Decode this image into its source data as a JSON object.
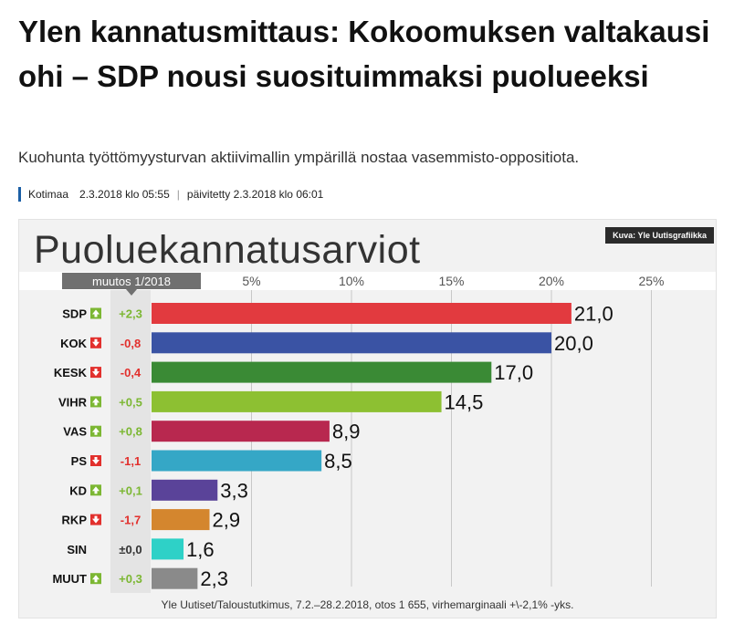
{
  "article": {
    "headline": "Ylen kannatusmittaus: Kokoomuksen valtakausi ohi – SDP nousi suosituimmaksi puolueeksi",
    "lead": "Kuohunta työttömyysturvan aktiivimallin ympärillä nostaa vasemmisto-oppositiota.",
    "section": "Kotimaa",
    "published": "2.3.2018 klo 05:55",
    "updated": "päivitetty 2.3.2018 klo 06:01"
  },
  "graphic": {
    "title": "Puoluekannatusarviot",
    "credit": "Kuva: Yle Uutisgrafiikka",
    "change_header": "muutos 1/2018",
    "footnote": "Yle Uutiset/Taloustutkimus, 7.2.–28.2.2018, otos 1 655, virhemarginaali +\\-2,1% -yks."
  },
  "chart_data": {
    "type": "bar",
    "orientation": "horizontal",
    "title": "Puoluekannatusarviot",
    "xlim": [
      0,
      25
    ],
    "ticks": [
      "5%",
      "10%",
      "15%",
      "20%",
      "25%"
    ],
    "tick_values": [
      5,
      10,
      15,
      20,
      25
    ],
    "grid": true,
    "categories": [
      "SDP",
      "KOK",
      "KESK",
      "VIHR",
      "VAS",
      "PS",
      "KD",
      "RKP",
      "SIN",
      "MUUT"
    ],
    "values": [
      21.0,
      20.0,
      17.0,
      14.5,
      8.9,
      8.5,
      3.3,
      2.9,
      1.6,
      2.3
    ],
    "value_labels": [
      "21,0",
      "20,0",
      "17,0",
      "14,5",
      "8,9",
      "8,5",
      "3,3",
      "2,9",
      "1,6",
      "2,3"
    ],
    "changes": [
      "+2,3",
      "-0,8",
      "-0,4",
      "+0,5",
      "+0,8",
      "-1,1",
      "+0,1",
      "-1,7",
      "±0,0",
      "+0,3"
    ],
    "change_direction": [
      "up",
      "down",
      "down",
      "up",
      "up",
      "down",
      "up",
      "down",
      "none",
      "up"
    ],
    "bar_colors": [
      "#e23a3f",
      "#3a53a4",
      "#3a8a35",
      "#8dc032",
      "#b8284f",
      "#35a7c6",
      "#5a4399",
      "#d4862e",
      "#2ed1c7",
      "#8a8a8a"
    ],
    "change_colors": {
      "up": "#7cb733",
      "down": "#e2302d",
      "none": "#333333"
    }
  }
}
